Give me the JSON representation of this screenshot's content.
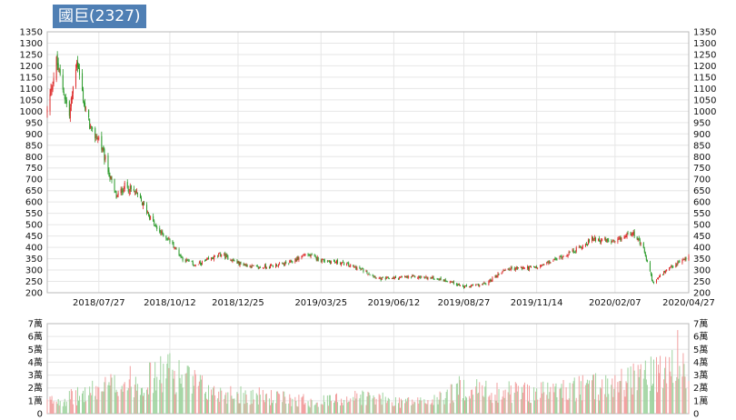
{
  "title": "國巨(2327)",
  "colors": {
    "up": "#dd2a2a",
    "down": "#2a9a2a",
    "up_volume": "#f2a0a0",
    "down_volume": "#9ed39e",
    "title_bg": "#4f7fb4"
  },
  "chart_data": [
    {
      "type": "candlestick",
      "title": "國巨(2327)",
      "ylim": [
        200,
        1350
      ],
      "y_ticks": [
        "1350",
        "1300",
        "1250",
        "1200",
        "1150",
        "1100",
        "1050",
        "1000",
        "950",
        "900",
        "850",
        "800",
        "750",
        "700",
        "650",
        "600",
        "550",
        "500",
        "450",
        "400",
        "350",
        "300",
        "250",
        "200"
      ],
      "x_ticks": [
        "2018/07/27",
        "2018/10/12",
        "2018/12/25",
        "2019/03/25",
        "2019/06/12",
        "2019/08/27",
        "2019/11/14",
        "2020/02/07",
        "2020/04/27"
      ],
      "approx_close_series": [
        {
          "x": "2018/06/01",
          "y": 1000
        },
        {
          "x": "2018/06/11",
          "y": 1220
        },
        {
          "x": "2018/06/25",
          "y": 980
        },
        {
          "x": "2018/07/03",
          "y": 1230
        },
        {
          "x": "2018/07/12",
          "y": 1010
        },
        {
          "x": "2018/07/20",
          "y": 900
        },
        {
          "x": "2018/07/27",
          "y": 880
        },
        {
          "x": "2018/08/06",
          "y": 740
        },
        {
          "x": "2018/08/15",
          "y": 620
        },
        {
          "x": "2018/08/24",
          "y": 670
        },
        {
          "x": "2018/09/05",
          "y": 640
        },
        {
          "x": "2018/09/17",
          "y": 560
        },
        {
          "x": "2018/09/28",
          "y": 480
        },
        {
          "x": "2018/10/12",
          "y": 430
        },
        {
          "x": "2018/10/26",
          "y": 350
        },
        {
          "x": "2018/11/09",
          "y": 320
        },
        {
          "x": "2018/11/23",
          "y": 345
        },
        {
          "x": "2018/12/07",
          "y": 370
        },
        {
          "x": "2018/12/25",
          "y": 330
        },
        {
          "x": "2019/01/16",
          "y": 310
        },
        {
          "x": "2019/02/18",
          "y": 330
        },
        {
          "x": "2019/03/08",
          "y": 370
        },
        {
          "x": "2019/03/25",
          "y": 345
        },
        {
          "x": "2019/04/18",
          "y": 330
        },
        {
          "x": "2019/05/09",
          "y": 300
        },
        {
          "x": "2019/05/28",
          "y": 260
        },
        {
          "x": "2019/06/12",
          "y": 265
        },
        {
          "x": "2019/07/05",
          "y": 270
        },
        {
          "x": "2019/07/25",
          "y": 265
        },
        {
          "x": "2019/08/12",
          "y": 250
        },
        {
          "x": "2019/08/27",
          "y": 225
        },
        {
          "x": "2019/09/20",
          "y": 240
        },
        {
          "x": "2019/10/11",
          "y": 305
        },
        {
          "x": "2019/11/01",
          "y": 310
        },
        {
          "x": "2019/11/14",
          "y": 310
        },
        {
          "x": "2019/12/06",
          "y": 350
        },
        {
          "x": "2019/12/27",
          "y": 390
        },
        {
          "x": "2020/01/15",
          "y": 440
        },
        {
          "x": "2020/02/07",
          "y": 420
        },
        {
          "x": "2020/02/26",
          "y": 470
        },
        {
          "x": "2020/03/09",
          "y": 390
        },
        {
          "x": "2020/03/19",
          "y": 245
        },
        {
          "x": "2020/04/01",
          "y": 290
        },
        {
          "x": "2020/04/15",
          "y": 330
        },
        {
          "x": "2020/04/27",
          "y": 360
        }
      ]
    },
    {
      "type": "bar",
      "title": "",
      "ylim": [
        0,
        7
      ],
      "y_ticks": [
        "7萬",
        "6萬",
        "5萬",
        "4萬",
        "3萬",
        "2萬",
        "1萬",
        "0"
      ],
      "approx_volume_series": [
        {
          "x": "2018/06/01",
          "y": 1.0
        },
        {
          "x": "2018/07/03",
          "y": 1.4
        },
        {
          "x": "2018/08/15",
          "y": 2.4
        },
        {
          "x": "2018/09/17",
          "y": 2.8
        },
        {
          "x": "2018/10/12",
          "y": 3.4
        },
        {
          "x": "2018/10/26",
          "y": 3.0
        },
        {
          "x": "2018/11/23",
          "y": 1.8
        },
        {
          "x": "2018/12/25",
          "y": 1.6
        },
        {
          "x": "2019/02/18",
          "y": 1.2
        },
        {
          "x": "2019/03/25",
          "y": 1.0
        },
        {
          "x": "2019/05/09",
          "y": 1.4
        },
        {
          "x": "2019/06/12",
          "y": 1.0
        },
        {
          "x": "2019/07/25",
          "y": 1.0
        },
        {
          "x": "2019/08/27",
          "y": 2.2
        },
        {
          "x": "2019/09/20",
          "y": 1.8
        },
        {
          "x": "2019/11/14",
          "y": 1.8
        },
        {
          "x": "2019/12/27",
          "y": 2.0
        },
        {
          "x": "2020/02/07",
          "y": 2.4
        },
        {
          "x": "2020/03/09",
          "y": 3.4
        },
        {
          "x": "2020/03/19",
          "y": 3.0
        },
        {
          "x": "2020/04/15",
          "y": 3.6
        },
        {
          "x": "2020/04/27",
          "y": 3.0
        }
      ],
      "highlights": [
        {
          "x": "2018/10/12",
          "y": 4.7
        },
        {
          "x": "2020/04/15",
          "y": 6.5
        }
      ]
    }
  ]
}
